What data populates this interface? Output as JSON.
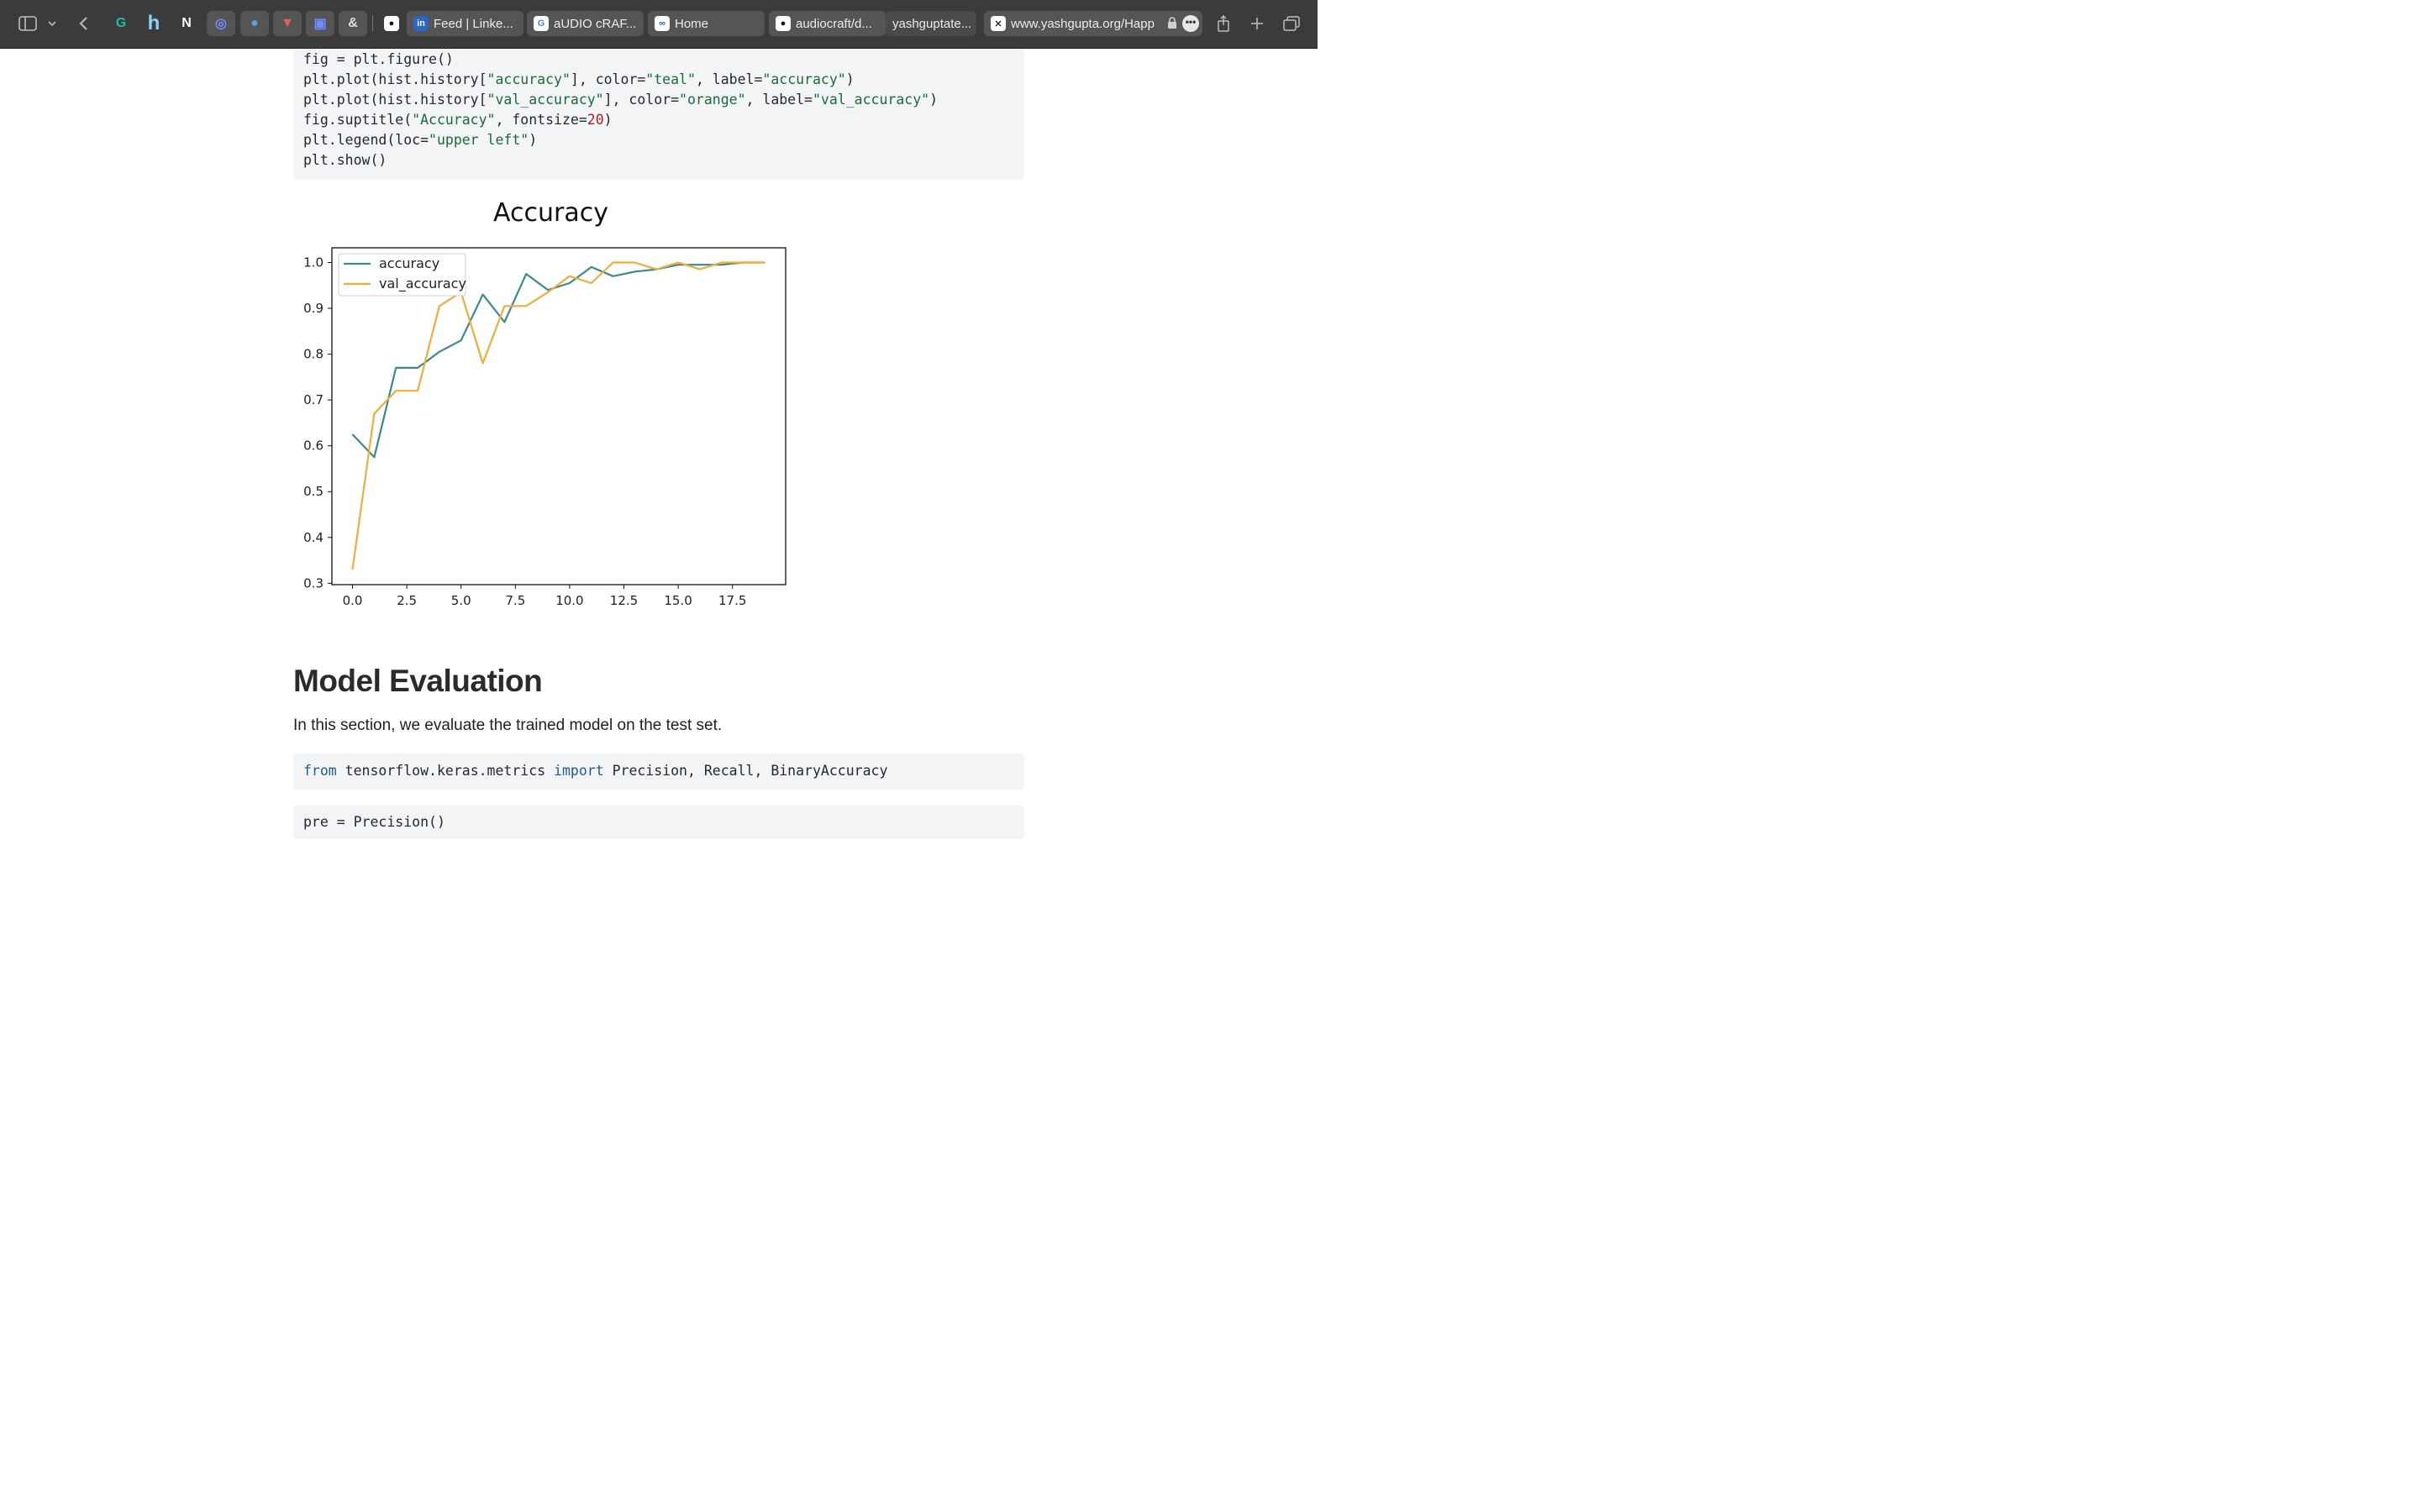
{
  "browser": {
    "extensions": [
      {
        "name": "grammarly-icon",
        "glyph": "G",
        "color": "#15c39a"
      },
      {
        "name": "honey-icon",
        "glyph": "h",
        "color": "#8ad1ff"
      },
      {
        "name": "notion-icon",
        "glyph": "N",
        "color": "#ffffff"
      },
      {
        "name": "ext-blue-icon",
        "glyph": "◎",
        "color": "#6f8cff"
      },
      {
        "name": "globe-icon",
        "glyph": "●",
        "color": "#5aa0e0"
      },
      {
        "name": "ext-shield-icon",
        "glyph": "▼",
        "color": "#e06060"
      },
      {
        "name": "ext-crop-icon",
        "glyph": "▣",
        "color": "#6f8cff"
      },
      {
        "name": "ext-ampersand-icon",
        "glyph": "&",
        "color": "#dddddd"
      }
    ],
    "tabs": [
      {
        "name": "tab-github-1",
        "label": "",
        "favicon": "github-icon",
        "fav_glyph": "●"
      },
      {
        "name": "tab-linkedin",
        "label": "Feed | Linke...",
        "favicon": "linkedin-icon",
        "fav_glyph": "in"
      },
      {
        "name": "tab-audiocraft-google",
        "label": "aUDIO cRAF...",
        "favicon": "google-icon",
        "fav_glyph": "G"
      },
      {
        "name": "tab-meta-home",
        "label": "Home",
        "favicon": "meta-icon",
        "fav_glyph": "∞"
      },
      {
        "name": "tab-audiocraft-github",
        "label": "audiocraft/d...",
        "favicon": "github-icon",
        "fav_glyph": "●"
      },
      {
        "name": "tab-yashgupta",
        "label": "yashguptate...",
        "favicon": "",
        "fav_glyph": ""
      },
      {
        "name": "tab-current-url",
        "label": "www.yashgupta.org/Happ",
        "favicon": "close-tab-icon",
        "fav_glyph": "✕"
      }
    ]
  },
  "code_top": [
    [
      {
        "t": "fig = plt.figure()"
      }
    ],
    [
      {
        "t": "plt.plot(hist.history["
      },
      {
        "t": "\"accuracy\"",
        "c": "str"
      },
      {
        "t": "], color="
      },
      {
        "t": "\"teal\"",
        "c": "str"
      },
      {
        "t": ", label="
      },
      {
        "t": "\"accuracy\"",
        "c": "str"
      },
      {
        "t": ")"
      }
    ],
    [
      {
        "t": "plt.plot(hist.history["
      },
      {
        "t": "\"val_accuracy\"",
        "c": "str"
      },
      {
        "t": "], color="
      },
      {
        "t": "\"orange\"",
        "c": "str"
      },
      {
        "t": ", label="
      },
      {
        "t": "\"val_accuracy\"",
        "c": "str"
      },
      {
        "t": ")"
      }
    ],
    [
      {
        "t": "fig.suptitle("
      },
      {
        "t": "\"Accuracy\"",
        "c": "str"
      },
      {
        "t": ", fontsize="
      },
      {
        "t": "20",
        "c": "num"
      },
      {
        "t": ")"
      }
    ],
    [
      {
        "t": "plt.legend(loc="
      },
      {
        "t": "\"upper left\"",
        "c": "str"
      },
      {
        "t": ")"
      }
    ],
    [
      {
        "t": "plt.show()"
      }
    ]
  ],
  "chart_data": {
    "type": "line",
    "title": "Accuracy",
    "xlabel": "",
    "ylabel": "",
    "xlim": [
      -0.95,
      19.95
    ],
    "ylim": [
      0.297,
      1.032
    ],
    "xticks": [
      "0.0",
      "2.5",
      "5.0",
      "7.5",
      "10.0",
      "12.5",
      "15.0",
      "17.5"
    ],
    "xtick_values": [
      0,
      2.5,
      5,
      7.5,
      10,
      12.5,
      15,
      17.5
    ],
    "yticks": [
      "0.3",
      "0.4",
      "0.5",
      "0.6",
      "0.7",
      "0.8",
      "0.9",
      "1.0"
    ],
    "ytick_values": [
      0.3,
      0.4,
      0.5,
      0.6,
      0.7,
      0.8,
      0.9,
      1.0
    ],
    "x": [
      0,
      1,
      2,
      3,
      4,
      5,
      6,
      7,
      8,
      9,
      10,
      11,
      12,
      13,
      14,
      15,
      16,
      17,
      18,
      19
    ],
    "legend_position": "upper left",
    "grid": false,
    "series": [
      {
        "name": "accuracy",
        "color": "#3a8a8c",
        "values": [
          0.625,
          0.575,
          0.77,
          0.77,
          0.805,
          0.83,
          0.93,
          0.87,
          0.975,
          0.94,
          0.955,
          0.99,
          0.97,
          0.98,
          0.985,
          0.995,
          0.995,
          0.995,
          1.0,
          1.0
        ]
      },
      {
        "name": "val_accuracy",
        "color": "#f0ad3c",
        "values": [
          0.33,
          0.67,
          0.72,
          0.72,
          0.905,
          0.935,
          0.78,
          0.905,
          0.905,
          0.935,
          0.97,
          0.955,
          1.0,
          1.0,
          0.985,
          1.0,
          0.985,
          1.0,
          1.0,
          1.0
        ]
      }
    ]
  },
  "section": {
    "heading": "Model Evaluation",
    "paragraph": "In this section, we evaluate the trained model on the test set."
  },
  "code_import": [
    [
      {
        "t": "from",
        "c": "kw"
      },
      {
        "t": " tensorflow.keras.metrics "
      },
      {
        "t": "import",
        "c": "kw"
      },
      {
        "t": " Precision, Recall, BinaryAccuracy"
      }
    ]
  ],
  "code_bottom_partial": "pre = Precision()"
}
